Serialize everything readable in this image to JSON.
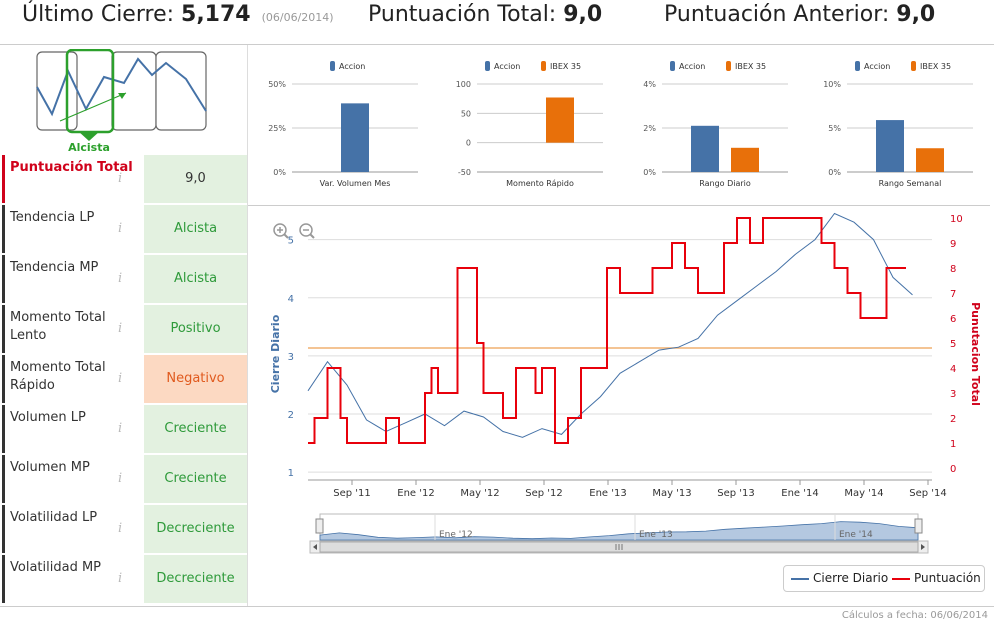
{
  "header": {
    "ultimo_label": "Último Cierre:",
    "ultimo_value": "5,174",
    "ultimo_date": "(06/06/2014)",
    "total_label": "Puntuación Total:",
    "total_value": "9,0",
    "anterior_label": "Puntuación Anterior:",
    "anterior_value": "9,0"
  },
  "trend": {
    "label": "Alcista"
  },
  "rows": [
    {
      "label": "Puntuación Total",
      "value": "9,0",
      "state": "score"
    },
    {
      "label": "Tendencia LP",
      "value": "Alcista",
      "state": "pos"
    },
    {
      "label": "Tendencia MP",
      "value": "Alcista",
      "state": "pos"
    },
    {
      "label": "Momento Total Lento",
      "value": "Positivo",
      "state": "pos"
    },
    {
      "label": "Momento Total Rápido",
      "value": "Negativo",
      "state": "neg"
    },
    {
      "label": "Volumen LP",
      "value": "Creciente",
      "state": "pos"
    },
    {
      "label": "Volumen MP",
      "value": "Creciente",
      "state": "pos"
    },
    {
      "label": "Volatilidad LP",
      "value": "Decreciente",
      "state": "pos"
    },
    {
      "label": "Volatilidad MP",
      "value": "Decreciente",
      "state": "pos"
    }
  ],
  "info_glyph": "i",
  "colors": {
    "accion": "#4572a7",
    "ibex": "#e8700a",
    "cierre": "#4572a7",
    "puntuacion": "#e8000b",
    "threshold": "#f0b070"
  },
  "chart_data": [
    {
      "type": "bar",
      "title": "Var. Volumen Mes",
      "legend": [
        "Accion"
      ],
      "series": [
        {
          "name": "Accion",
          "values": [
            39
          ]
        }
      ],
      "yticks": [
        "50%",
        "25%",
        "0%"
      ],
      "ylim": [
        0,
        50
      ]
    },
    {
      "type": "bar",
      "title": "Momento Rápido",
      "legend": [
        "Accion",
        "IBEX 35"
      ],
      "series": [
        {
          "name": "Accion",
          "values": [
            0
          ]
        },
        {
          "name": "IBEX 35",
          "values": [
            77
          ]
        }
      ],
      "yticks": [
        "100",
        "50",
        "0",
        "-50"
      ],
      "ylim": [
        -50,
        100
      ]
    },
    {
      "type": "bar",
      "title": "Rango Diario",
      "legend": [
        "Accion",
        "IBEX 35"
      ],
      "series": [
        {
          "name": "Accion",
          "values": [
            2.1
          ]
        },
        {
          "name": "IBEX 35",
          "values": [
            1.1
          ]
        }
      ],
      "yticks": [
        "4%",
        "2%",
        "0%"
      ],
      "ylim": [
        0,
        4
      ]
    },
    {
      "type": "bar",
      "title": "Rango Semanal",
      "legend": [
        "Accion",
        "IBEX 35"
      ],
      "series": [
        {
          "name": "Accion",
          "values": [
            5.9
          ]
        },
        {
          "name": "IBEX 35",
          "values": [
            2.7
          ]
        }
      ],
      "yticks": [
        "10%",
        "5%",
        "0%"
      ],
      "ylim": [
        0,
        10
      ]
    },
    {
      "type": "line",
      "ylabel_left": "Cierre Diario",
      "ylabel_right": "Punutacion Total",
      "yticks_left": [
        "5",
        "4",
        "3",
        "2",
        "1"
      ],
      "yticks_right": [
        "10",
        "9",
        "8",
        "7",
        "6",
        "5",
        "4",
        "3",
        "2",
        "1",
        "0"
      ],
      "xticks": [
        "Sep '11",
        "Ene '12",
        "May '12",
        "Sep '12",
        "Ene '13",
        "May '13",
        "Sep '13",
        "Ene '14",
        "May '14",
        "Sep '14"
      ],
      "navigator_labels": [
        "Ene '12",
        "Ene '13",
        "Ene '14"
      ],
      "threshold": 4.8,
      "series": [
        {
          "name": "Cierre Diario",
          "x": [
            0,
            0.3,
            0.6,
            0.9,
            1.2,
            1.5,
            1.8,
            2.1,
            2.4,
            2.7,
            3.0,
            3.3,
            3.6,
            3.9,
            4.2,
            4.5,
            4.8,
            5.1,
            5.4,
            5.7,
            6.0,
            6.3,
            6.6,
            6.9,
            7.2,
            7.5,
            7.8,
            8.1,
            8.4,
            8.7,
            9.0,
            9.3
          ],
          "values": [
            2.4,
            2.9,
            2.5,
            1.9,
            1.7,
            1.85,
            2.0,
            1.8,
            2.05,
            1.95,
            1.7,
            1.6,
            1.75,
            1.65,
            2.0,
            2.3,
            2.7,
            2.9,
            3.1,
            3.15,
            3.3,
            3.7,
            3.95,
            4.2,
            4.45,
            4.75,
            5.0,
            5.45,
            5.3,
            5.0,
            4.35,
            4.05
          ]
        },
        {
          "name": "Puntuación",
          "x": [
            0,
            0.1,
            0.3,
            0.5,
            0.6,
            0.9,
            1.2,
            1.4,
            1.6,
            1.8,
            1.9,
            2.0,
            2.3,
            2.6,
            2.7,
            2.9,
            3.0,
            3.2,
            3.5,
            3.6,
            3.8,
            4.0,
            4.2,
            4.4,
            4.6,
            4.8,
            5.0,
            5.3,
            5.5,
            5.6,
            5.8,
            6.0,
            6.4,
            6.6,
            6.8,
            7.0,
            7.2,
            7.4,
            7.6,
            7.9,
            8.1,
            8.3,
            8.5,
            8.7,
            8.9,
            9.2
          ],
          "values": [
            1,
            2,
            4,
            2,
            1,
            1,
            2,
            1,
            1,
            3,
            4,
            3,
            8,
            5,
            3,
            3,
            2,
            4,
            3,
            4,
            1,
            2,
            4,
            4,
            8,
            7,
            7,
            8,
            8,
            9,
            8,
            7,
            9,
            10,
            9,
            10,
            10,
            10,
            10,
            9,
            8,
            7,
            6,
            6,
            8,
            8
          ]
        }
      ],
      "legend": [
        "Cierre Diario",
        "Puntuación"
      ]
    }
  ],
  "footer": {
    "calc": "Cálculos a fecha: 06/06/2014"
  }
}
